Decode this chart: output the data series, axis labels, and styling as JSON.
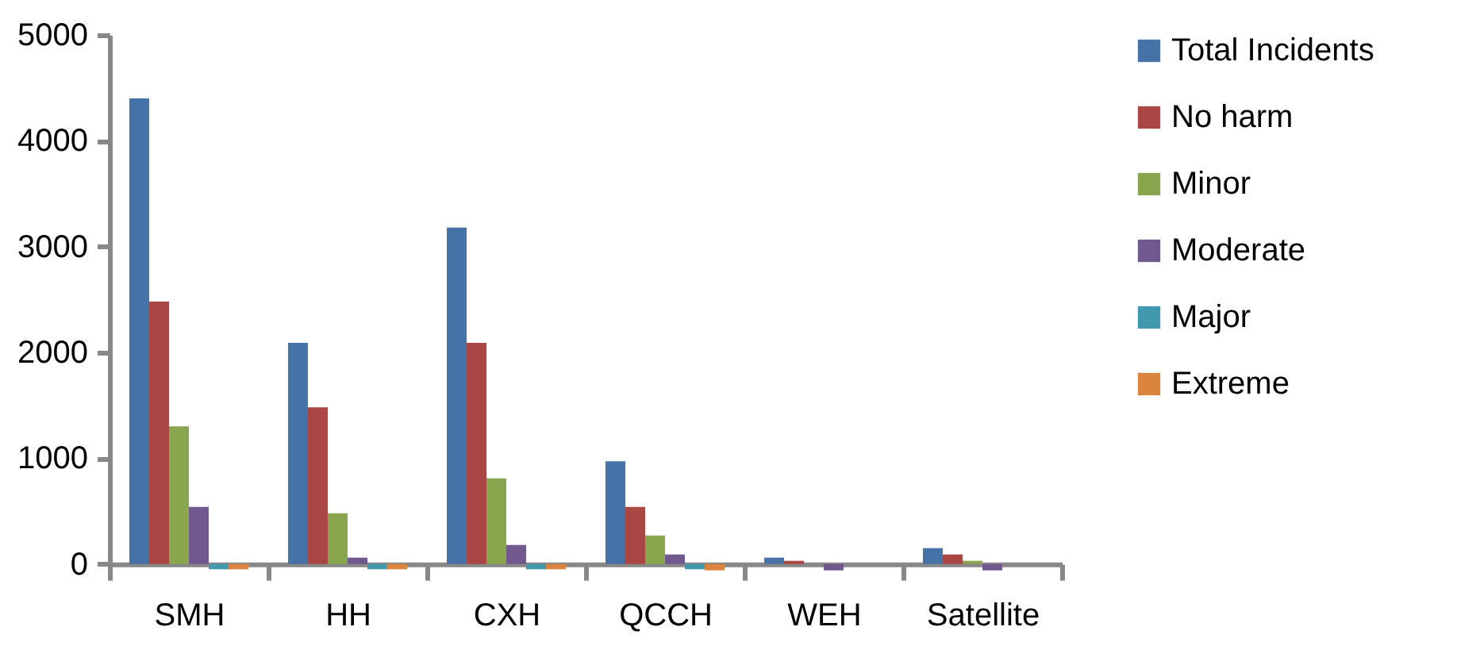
{
  "chart_data": {
    "type": "bar",
    "categories": [
      "SMH",
      "HH",
      "CXH",
      "QCCH",
      "WEH",
      "Satellite"
    ],
    "series": [
      {
        "name": "Total Incidents",
        "color": "#4572a7",
        "values": [
          4400,
          2090,
          3180,
          970,
          60,
          150
        ]
      },
      {
        "name": "No harm",
        "color": "#aa4643",
        "values": [
          2480,
          1480,
          2090,
          540,
          30,
          90
        ]
      },
      {
        "name": "Minor",
        "color": "#89a54e",
        "values": [
          1300,
          480,
          810,
          270,
          null,
          30
        ]
      },
      {
        "name": "Moderate",
        "color": "#71588f",
        "values": [
          540,
          60,
          180,
          90,
          -60,
          -60
        ]
      },
      {
        "name": "Major",
        "color": "#4198af",
        "values": [
          -50,
          -50,
          -50,
          -50,
          null,
          null
        ]
      },
      {
        "name": "Extreme",
        "color": "#db843d",
        "values": [
          -50,
          -50,
          -50,
          -60,
          null,
          null
        ]
      }
    ],
    "ylim": [
      -100,
      5000
    ],
    "yticks": [
      0,
      1000,
      2000,
      3000,
      4000,
      5000
    ],
    "grid": false,
    "legend": "right"
  }
}
